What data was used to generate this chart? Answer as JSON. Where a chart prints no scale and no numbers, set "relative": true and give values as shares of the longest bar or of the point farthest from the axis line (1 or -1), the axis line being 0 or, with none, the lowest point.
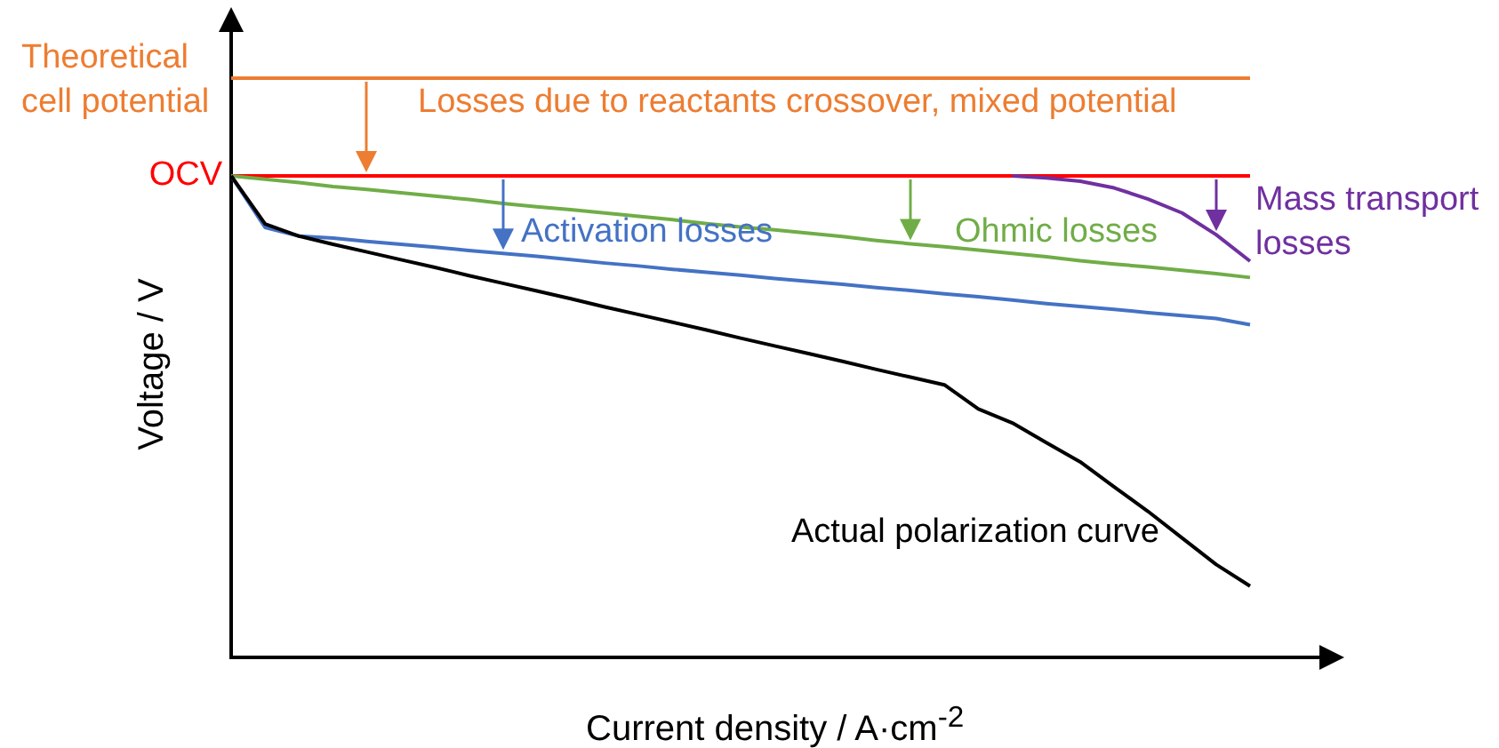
{
  "chart_data": {
    "type": "line",
    "relative": true,
    "xlabel": "Current density / A·cm$^{-2}$",
    "ylabel": "Voltage / V",
    "categories": [
      null,
      null,
      null,
      null,
      null,
      null,
      null,
      null,
      null,
      null,
      null,
      null,
      null,
      null,
      null,
      null,
      null,
      null,
      null,
      null,
      null,
      null,
      null,
      null,
      null,
      null,
      null,
      null,
      null,
      null,
      null
    ],
    "series": [
      {
        "name": "Actual polarization curve",
        "color": "#000000",
        "values": [
          1,
          0.9,
          0.875,
          0.858,
          0.842,
          0.826,
          0.81,
          0.793,
          0.777,
          0.761,
          0.745,
          0.728,
          0.712,
          0.696,
          0.68,
          0.663,
          0.647,
          0.631,
          0.615,
          0.598,
          0.582,
          0.566,
          0.516,
          0.487,
          0.446,
          0.406,
          0.354,
          0.303,
          0.248,
          0.193,
          0.148
        ]
      },
      {
        "color": "#4472c4",
        "values": [
          1,
          0.893,
          0.875,
          0.871,
          0.864,
          0.858,
          0.852,
          0.845,
          0.839,
          0.833,
          0.826,
          0.819,
          0.813,
          0.806,
          0.8,
          0.794,
          0.787,
          0.781,
          0.775,
          0.768,
          0.762,
          0.755,
          0.749,
          0.742,
          0.735,
          0.729,
          0.723,
          0.716,
          0.71,
          0.704,
          0.691
        ]
      },
      {
        "color": "#70ad47",
        "values": [
          1,
          0.993,
          0.986,
          0.978,
          0.972,
          0.965,
          0.958,
          0.951,
          0.943,
          0.936,
          0.93,
          0.923,
          0.916,
          0.909,
          0.901,
          0.894,
          0.888,
          0.881,
          0.874,
          0.866,
          0.859,
          0.853,
          0.846,
          0.839,
          0.832,
          0.824,
          0.817,
          0.811,
          0.804,
          0.797,
          0.789
        ]
      },
      {
        "color": "#7030a0",
        "values": [
          null,
          null,
          null,
          null,
          null,
          null,
          null,
          null,
          null,
          null,
          null,
          null,
          null,
          null,
          null,
          null,
          null,
          null,
          null,
          null,
          null,
          null,
          null,
          1,
          0.996,
          0.989,
          0.975,
          0.952,
          0.923,
          0.878,
          0.823
        ]
      }
    ],
    "ref_lines": [
      {
        "axis": "y",
        "value": 1.203,
        "label": "Theoretical cell potential",
        "color": "#ed7d31"
      },
      {
        "axis": "y",
        "value": 1,
        "label": "OCV",
        "color": "#ff0000"
      }
    ],
    "annotations": [
      "Losses due to reactants crossover, mixed potential",
      "Activation losses",
      "Ohmic losses",
      "Mass transport losses"
    ]
  }
}
